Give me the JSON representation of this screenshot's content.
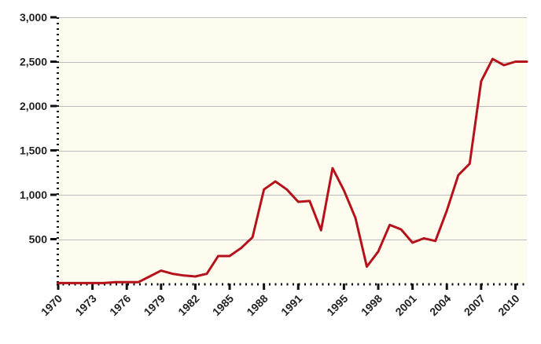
{
  "chart_data": {
    "type": "line",
    "title": "",
    "xlabel": "",
    "ylabel": "",
    "x": [
      1970,
      1971,
      1972,
      1973,
      1974,
      1975,
      1976,
      1977,
      1978,
      1979,
      1980,
      1981,
      1982,
      1983,
      1984,
      1985,
      1986,
      1987,
      1988,
      1989,
      1990,
      1991,
      1992,
      1993,
      1994,
      1995,
      1996,
      1997,
      1998,
      1999,
      2000,
      2001,
      2002,
      2003,
      2004,
      2005,
      2006,
      2007,
      2008,
      2009,
      2010,
      2011
    ],
    "series": [
      {
        "name": "value",
        "color": "#b5121b",
        "values": [
          5,
          5,
          5,
          5,
          5,
          15,
          15,
          15,
          80,
          145,
          110,
          90,
          80,
          110,
          310,
          310,
          400,
          520,
          1060,
          1150,
          1060,
          920,
          930,
          600,
          1300,
          1050,
          740,
          190,
          360,
          660,
          610,
          460,
          510,
          480,
          820,
          1220,
          1350,
          2280,
          2530,
          2460,
          2500,
          2500
        ]
      }
    ],
    "x_tick_labels": [
      "1970",
      "1973",
      "1976",
      "1979",
      "1982",
      "1985",
      "1988",
      "1991",
      "1995",
      "1998",
      "2001",
      "2004",
      "2007",
      "2010"
    ],
    "x_tick_values": [
      1970,
      1973,
      1976,
      1979,
      1982,
      1985,
      1988,
      1991,
      1995,
      1998,
      2001,
      2004,
      2007,
      2010
    ],
    "y_ticks": [
      500,
      1000,
      1500,
      2000,
      2500,
      3000
    ],
    "y_tick_labels": [
      "500",
      "1,000",
      "1,500",
      "2,000",
      "2,500",
      "3,000"
    ],
    "xlim": [
      1970,
      2011
    ],
    "ylim": [
      0,
      3000
    ],
    "grid": true,
    "legend": "none",
    "background_color": "#fdfcee",
    "grid_color": "#bdbdbd",
    "axis_color": "#111111"
  }
}
